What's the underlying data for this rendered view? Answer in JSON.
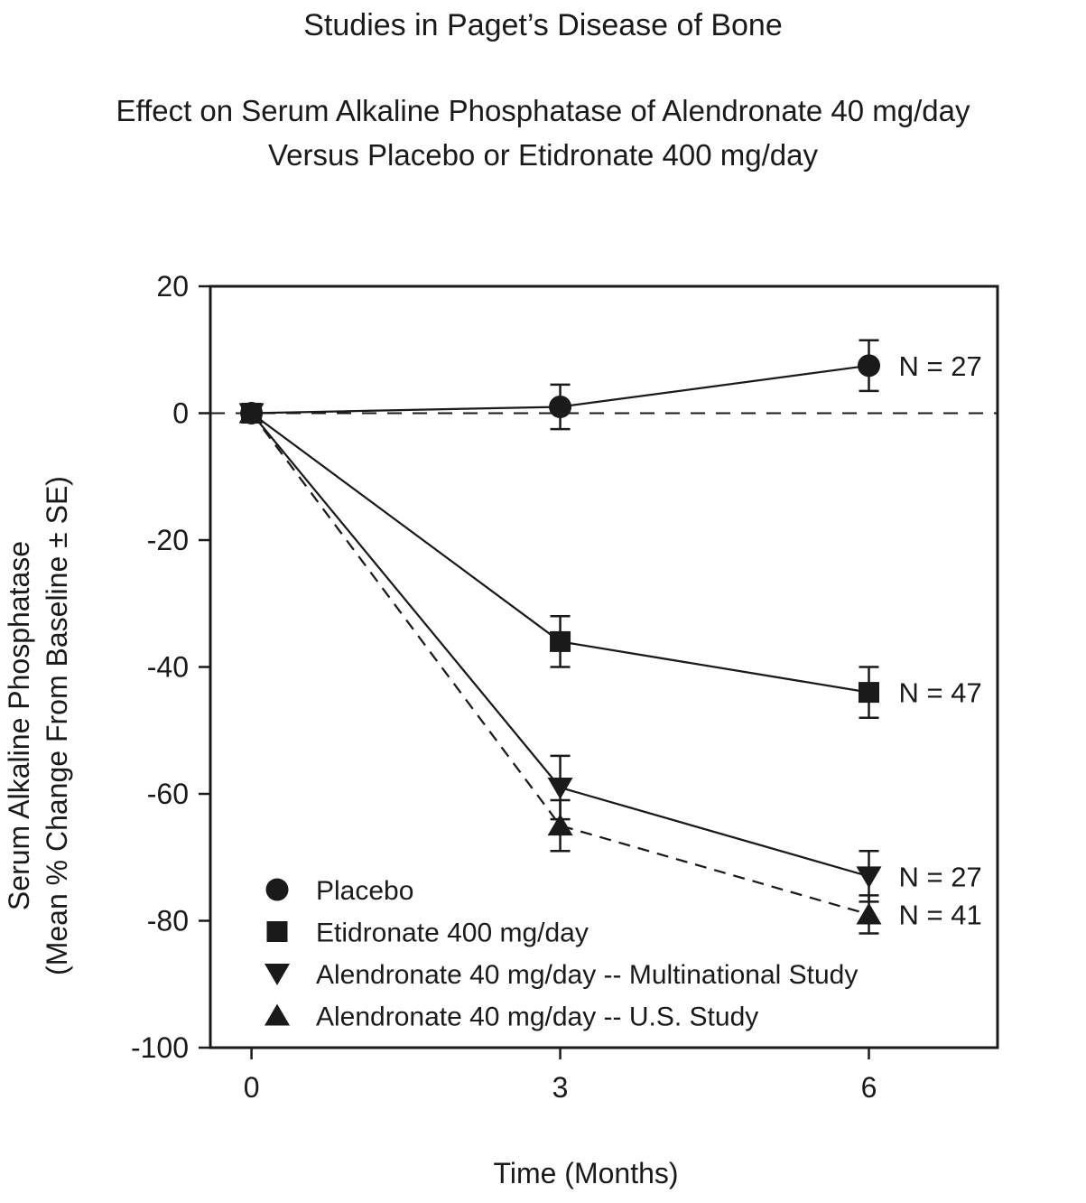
{
  "styles": {
    "ink": "#1a1a1a",
    "background": "#ffffff"
  },
  "chart_data": {
    "type": "line",
    "title": "Studies in Paget’s Disease of Bone",
    "subtitle_lines": [
      "Effect on Serum Alkaline Phosphatase of Alendronate 40 mg/day",
      "Versus Placebo or Etidronate 400 mg/day"
    ],
    "xlabel": "Time (Months)",
    "ylabel_lines": [
      "Serum Alkaline Phosphatase",
      "(Mean % Change From Baseline ± SE)"
    ],
    "x": [
      0,
      3,
      6
    ],
    "xticks": [
      0,
      3,
      6
    ],
    "yticks": [
      20,
      0,
      -20,
      -40,
      -60,
      -80,
      -100
    ],
    "xlim": [
      -0.4,
      7.25
    ],
    "ylim": [
      -100,
      20
    ],
    "grid": false,
    "reference_line_y": 0,
    "legend_position": "inside-bottom-left",
    "series": [
      {
        "name": "Placebo",
        "marker": "circle",
        "line": "solid",
        "values": [
          0,
          1,
          7.5
        ],
        "se": [
          0,
          3.5,
          4
        ],
        "n_label": "N = 27"
      },
      {
        "name": "Etidronate 400 mg/day",
        "marker": "square",
        "line": "solid",
        "values": [
          0,
          -36,
          -44
        ],
        "se": [
          0,
          4,
          4
        ],
        "n_label": "N = 47"
      },
      {
        "name": "Alendronate 40 mg/day -- Multinational Study",
        "marker": "triangle-down",
        "line": "solid",
        "values": [
          0,
          -59,
          -73
        ],
        "se": [
          0,
          5,
          4
        ],
        "n_label": "N = 27"
      },
      {
        "name": "Alendronate 40 mg/day -- U.S. Study",
        "marker": "triangle-up",
        "line": "dashed",
        "values": [
          0,
          -65,
          -79
        ],
        "se": [
          0,
          4,
          3
        ],
        "n_label": "N = 41"
      }
    ]
  }
}
